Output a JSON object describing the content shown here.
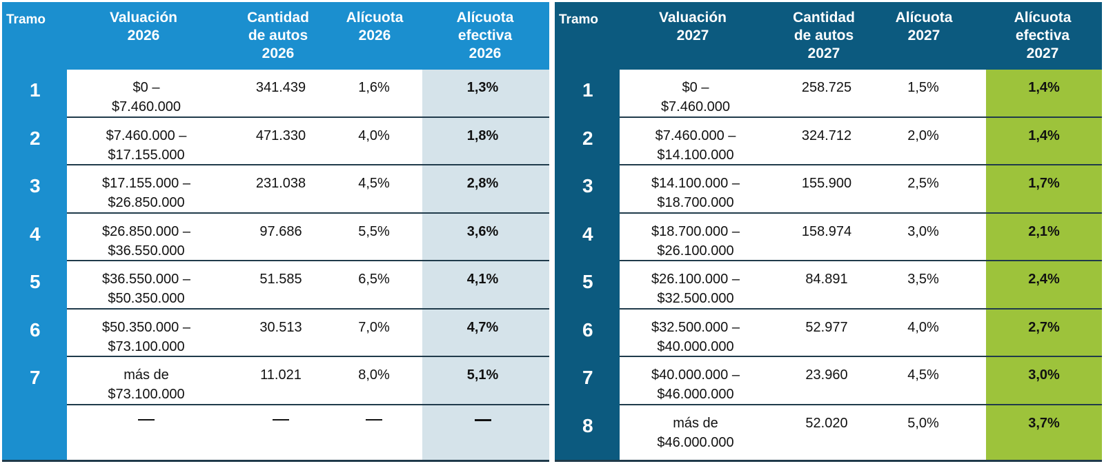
{
  "left": {
    "headers": {
      "tramo": "Tramo",
      "valuacion": [
        "Valuación",
        "2026"
      ],
      "cantidad": [
        "Cantidad",
        "de autos",
        "2026"
      ],
      "alicuota": [
        "Alícuota",
        "2026"
      ],
      "efectiva": [
        "Alícuota",
        "efectiva",
        "2026"
      ]
    },
    "rows": [
      {
        "tramo": "1",
        "valuacion": [
          "$0 –",
          "$7.460.000"
        ],
        "cantidad": "341.439",
        "alicuota": "1,6%",
        "efectiva": "1,3%"
      },
      {
        "tramo": "2",
        "valuacion": [
          "$7.460.000 –",
          "$17.155.000"
        ],
        "cantidad": "471.330",
        "alicuota": "4,0%",
        "efectiva": "1,8%"
      },
      {
        "tramo": "3",
        "valuacion": [
          "$17.155.000 –",
          "$26.850.000"
        ],
        "cantidad": "231.038",
        "alicuota": "4,5%",
        "efectiva": "2,8%"
      },
      {
        "tramo": "4",
        "valuacion": [
          "$26.850.000 –",
          "$36.550.000"
        ],
        "cantidad": "97.686",
        "alicuota": "5,5%",
        "efectiva": "3,6%"
      },
      {
        "tramo": "5",
        "valuacion": [
          "$36.550.000 –",
          "$50.350.000"
        ],
        "cantidad": "51.585",
        "alicuota": "6,5%",
        "efectiva": "4,1%"
      },
      {
        "tramo": "6",
        "valuacion": [
          "$50.350.000 –",
          "$73.100.000"
        ],
        "cantidad": "30.513",
        "alicuota": "7,0%",
        "efectiva": "4,7%"
      },
      {
        "tramo": "7",
        "valuacion": [
          "más de",
          "$73.100.000"
        ],
        "cantidad": "11.021",
        "alicuota": "8,0%",
        "efectiva": "5,1%"
      }
    ]
  },
  "right": {
    "headers": {
      "tramo": "Tramo",
      "valuacion": [
        "Valuación",
        "2027"
      ],
      "cantidad": [
        "Cantidad",
        "de autos",
        "2027"
      ],
      "alicuota": [
        "Alícuota",
        "2027"
      ],
      "efectiva": [
        "Alícuota",
        "efectiva",
        "2027"
      ]
    },
    "rows": [
      {
        "tramo": "1",
        "valuacion": [
          "$0 –",
          "$7.460.000"
        ],
        "cantidad": "258.725",
        "alicuota": "1,5%",
        "efectiva": "1,4%"
      },
      {
        "tramo": "2",
        "valuacion": [
          "$7.460.000 –",
          "$14.100.000"
        ],
        "cantidad": "324.712",
        "alicuota": "2,0%",
        "efectiva": "1,4%"
      },
      {
        "tramo": "3",
        "valuacion": [
          "$14.100.000 –",
          "$18.700.000"
        ],
        "cantidad": "155.900",
        "alicuota": "2,5%",
        "efectiva": "1,7%"
      },
      {
        "tramo": "4",
        "valuacion": [
          "$18.700.000 –",
          "$26.100.000"
        ],
        "cantidad": "158.974",
        "alicuota": "3,0%",
        "efectiva": "2,1%"
      },
      {
        "tramo": "5",
        "valuacion": [
          "$26.100.000 –",
          "$32.500.000"
        ],
        "cantidad": "84.891",
        "alicuota": "3,5%",
        "efectiva": "2,4%"
      },
      {
        "tramo": "6",
        "valuacion": [
          "$32.500.000 –",
          "$40.000.000"
        ],
        "cantidad": "52.977",
        "alicuota": "4,0%",
        "efectiva": "2,7%"
      },
      {
        "tramo": "7",
        "valuacion": [
          "$40.000.000 –",
          "$46.000.000"
        ],
        "cantidad": "23.960",
        "alicuota": "4,5%",
        "efectiva": "3,0%"
      },
      {
        "tramo": "8",
        "valuacion": [
          "más de",
          "$46.000.000"
        ],
        "cantidad": "52.020",
        "alicuota": "5,0%",
        "efectiva": "3,7%"
      }
    ]
  },
  "colors": {
    "header_2026": "#1b8fcf",
    "header_2027": "#0c5a7f",
    "effective_2026": "#d5e3ea",
    "effective_2027": "#9dc33b",
    "separator": "#1f3a4a"
  }
}
